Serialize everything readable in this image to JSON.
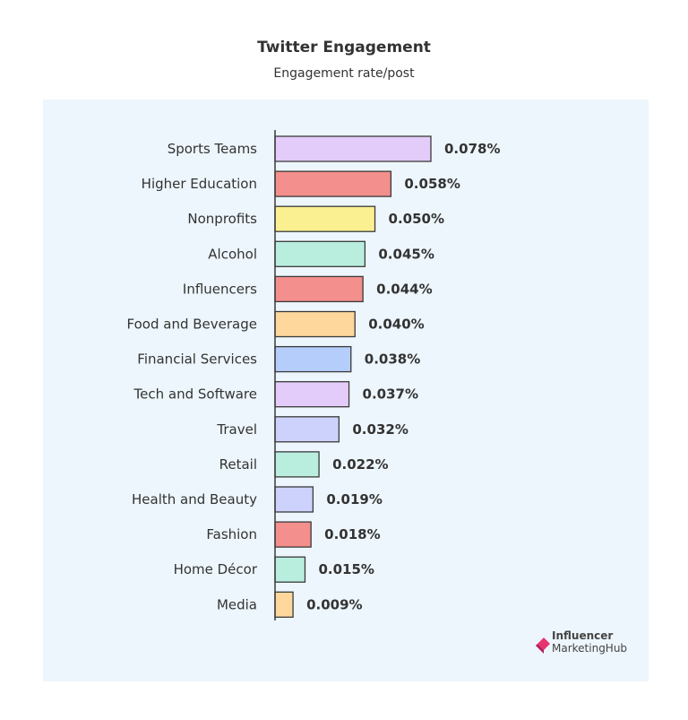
{
  "chart_data": {
    "type": "bar",
    "orientation": "horizontal",
    "title": "Twitter Engagement",
    "subtitle": "Engagement rate/post",
    "categories": [
      "Sports Teams",
      "Higher Education",
      "Nonprofits",
      "Alcohol",
      "Influencers",
      "Food and Beverage",
      "Financial Services",
      "Tech and Software",
      "Travel",
      "Retail",
      "Health and Beauty",
      "Fashion",
      "Home Décor",
      "Media"
    ],
    "values": [
      0.078,
      0.058,
      0.05,
      0.045,
      0.044,
      0.04,
      0.038,
      0.037,
      0.032,
      0.022,
      0.019,
      0.018,
      0.015,
      0.009
    ],
    "value_labels": [
      "0.078%",
      "0.058%",
      "0.050%",
      "0.045%",
      "0.044%",
      "0.040%",
      "0.038%",
      "0.037%",
      "0.032%",
      "0.022%",
      "0.019%",
      "0.018%",
      "0.015%",
      "0.009%"
    ],
    "colors": [
      "#e3ccfa",
      "#f38f8c",
      "#fbf091",
      "#b9eede",
      "#f38f8c",
      "#fed79d",
      "#b5cdfb",
      "#e3ccfa",
      "#cdd2fd",
      "#b9eede",
      "#cdd2fd",
      "#f38f8c",
      "#b9eede",
      "#fed79d"
    ],
    "xlim": [
      0,
      0.078
    ],
    "grid": false
  },
  "branding": {
    "logo_line1": "Influencer",
    "logo_line2": "MarketingHub",
    "logo_colors": [
      "#e9356f",
      "#b01f57"
    ]
  }
}
